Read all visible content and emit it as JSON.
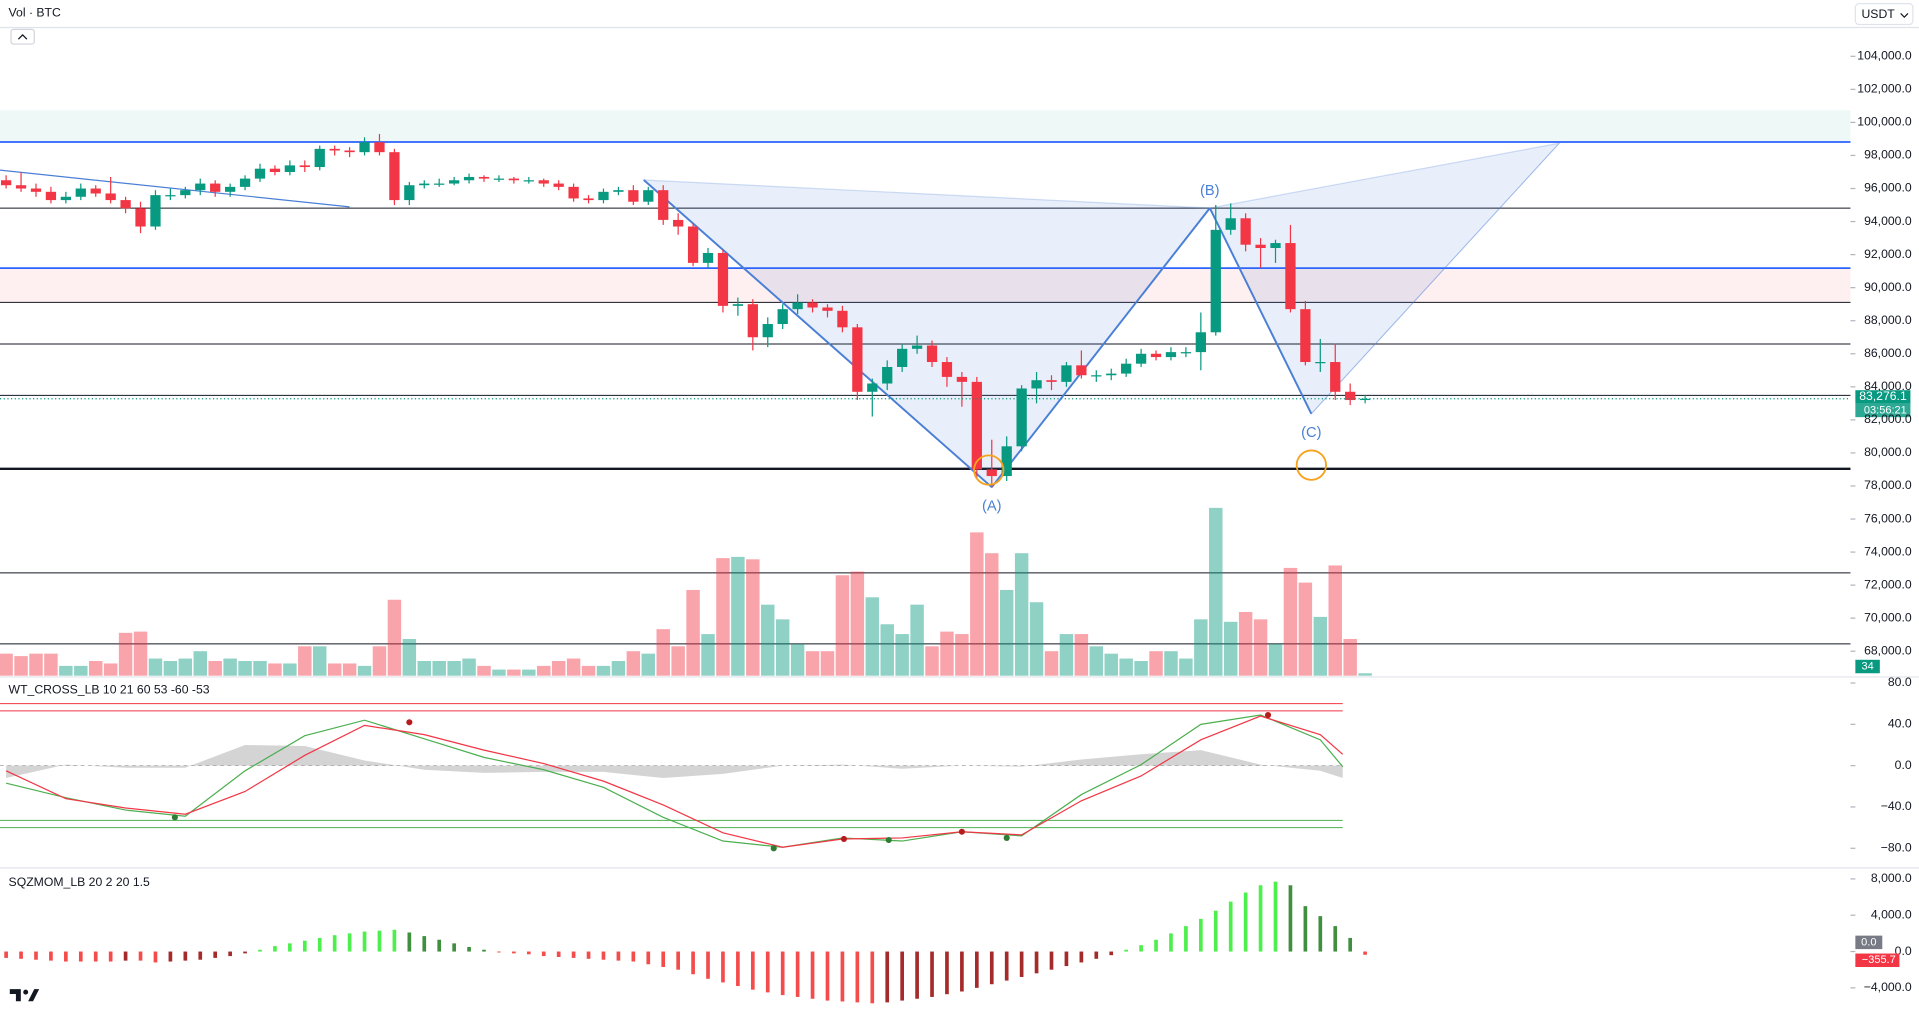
{
  "chart_data": [
    {
      "type": "candlestick",
      "title": "Vol · BTC",
      "currency": "USDT",
      "up_color": "#089981",
      "down_color": "#f23645",
      "x": [
        0,
        1,
        2,
        3,
        4,
        5,
        6,
        7,
        8,
        9,
        10,
        11,
        12,
        13,
        14,
        15,
        16,
        17,
        18,
        19,
        20,
        21,
        22,
        23,
        24,
        25,
        26,
        27,
        28,
        29,
        30,
        31,
        32,
        33,
        34,
        35,
        36,
        37,
        38,
        39,
        40,
        41,
        42,
        43,
        44,
        45,
        46,
        47,
        48,
        49,
        50,
        51,
        52,
        53,
        54,
        55,
        56,
        57,
        58,
        59,
        60,
        61,
        62,
        63,
        64,
        65,
        66,
        67,
        68,
        69,
        70,
        71,
        72,
        73,
        74,
        75,
        76,
        77,
        78,
        79,
        80,
        81,
        82,
        83,
        84,
        85,
        86,
        87,
        88,
        89,
        90,
        91
      ],
      "open": [
        96500,
        96200,
        96000,
        95800,
        95300,
        95500,
        96000,
        95700,
        95300,
        94800,
        93700,
        95600,
        95600,
        95900,
        96300,
        95800,
        96100,
        96600,
        97200,
        97000,
        97400,
        97300,
        98400,
        98300,
        98200,
        98800,
        98200,
        95300,
        96200,
        96300,
        96300,
        96500,
        96700,
        96600,
        96600,
        96500,
        96500,
        96300,
        96100,
        95400,
        95300,
        95800,
        95900,
        95200,
        95900,
        94100,
        93700,
        91500,
        92100,
        88900,
        89000,
        87000,
        87800,
        88700,
        89100,
        88800,
        88600,
        87600,
        83700,
        84200,
        85200,
        86300,
        86500,
        85500,
        84600,
        84300,
        79000,
        78600,
        80400,
        83900,
        84400,
        84300,
        85300,
        84700,
        84700,
        84800,
        85400,
        86000,
        85800,
        86100,
        86100,
        87300,
        93500,
        94200,
        92600,
        92400,
        92700,
        88700,
        85500,
        85500,
        83700,
        83200
      ],
      "high": [
        96800,
        97000,
        96300,
        96100,
        95800,
        96300,
        96200,
        96700,
        95500,
        95200,
        95900,
        96000,
        96100,
        96600,
        96500,
        96300,
        96800,
        97500,
        97400,
        97700,
        97700,
        98600,
        98600,
        98500,
        99100,
        99300,
        98400,
        96400,
        96500,
        96600,
        96700,
        96900,
        96800,
        96800,
        96700,
        96700,
        96600,
        96500,
        96300,
        95600,
        96000,
        96100,
        96200,
        96100,
        96200,
        94500,
        93900,
        92400,
        92300,
        89400,
        89300,
        88200,
        89000,
        89600,
        89300,
        89000,
        88900,
        87800,
        84500,
        85600,
        86600,
        87100,
        86800,
        85800,
        84900,
        84600,
        80800,
        81000,
        84100,
        84900,
        84700,
        85500,
        86200,
        85000,
        85100,
        85700,
        86300,
        86200,
        86400,
        86400,
        88500,
        95000,
        95100,
        94500,
        93000,
        92900,
        93800,
        89200,
        86900,
        86600,
        84200,
        83500
      ],
      "low": [
        96000,
        95800,
        95500,
        95100,
        95100,
        95300,
        95500,
        95100,
        94500,
        93300,
        93500,
        95300,
        95400,
        95600,
        95500,
        95500,
        95900,
        96400,
        96800,
        96800,
        97000,
        97100,
        98000,
        97900,
        98000,
        98000,
        95000,
        95000,
        96000,
        96100,
        96200,
        96300,
        96400,
        96400,
        96300,
        96300,
        96100,
        95900,
        95200,
        95100,
        95100,
        95600,
        95000,
        95000,
        93800,
        93200,
        91300,
        91200,
        88500,
        88300,
        86200,
        86400,
        87500,
        88400,
        88500,
        88200,
        87300,
        83200,
        82200,
        83800,
        84900,
        86000,
        85200,
        84000,
        82800,
        78500,
        77900,
        78300,
        80100,
        83000,
        83800,
        84000,
        84500,
        84300,
        84400,
        84600,
        85200,
        85600,
        85600,
        85800,
        85000,
        87100,
        93200,
        92200,
        91200,
        91500,
        88500,
        85300,
        84900,
        83200,
        82900,
        83000
      ],
      "close": [
        96200,
        96000,
        95800,
        95300,
        95500,
        96000,
        95700,
        95300,
        94800,
        93700,
        95600,
        95600,
        95900,
        96300,
        95800,
        96100,
        96600,
        97200,
        97000,
        97400,
        97300,
        98400,
        98300,
        98200,
        98800,
        98200,
        95300,
        96200,
        96300,
        96300,
        96500,
        96700,
        96600,
        96600,
        96500,
        96500,
        96300,
        96100,
        95400,
        95300,
        95800,
        95900,
        95200,
        95900,
        94100,
        93700,
        91500,
        92100,
        88900,
        89000,
        87000,
        87800,
        88700,
        89100,
        88800,
        88600,
        87600,
        83700,
        84200,
        85200,
        86300,
        86500,
        85500,
        84600,
        84300,
        79000,
        78600,
        80400,
        83900,
        84400,
        84300,
        85300,
        84700,
        84700,
        84800,
        85400,
        86000,
        85800,
        86100,
        86100,
        87300,
        93500,
        94200,
        92600,
        92400,
        92700,
        88700,
        85500,
        85500,
        83700,
        83200,
        83276.1
      ],
      "last_price_label": "83,276.1",
      "countdown": "03:56:21",
      "xlim": [
        -0.41,
        123.5
      ],
      "ylim": [
        66519,
        105778
      ],
      "yticks": [
        {
          "value": 104000,
          "label": "104,000.0"
        },
        {
          "value": 102000,
          "label": "102,000.0"
        },
        {
          "value": 100000,
          "label": "100,000.0"
        },
        {
          "value": 98000,
          "label": "98,000.0"
        },
        {
          "value": 96000,
          "label": "96,000.0"
        },
        {
          "value": 94000,
          "label": "94,000.0"
        },
        {
          "value": 92000,
          "label": "92,000.0"
        },
        {
          "value": 90000,
          "label": "90,000.0"
        },
        {
          "value": 88000,
          "label": "88,000.0"
        },
        {
          "value": 86000,
          "label": "86,000.0"
        },
        {
          "value": 84000,
          "label": "84,000.0"
        },
        {
          "value": 82000,
          "label": "82,000.0"
        },
        {
          "value": 80000,
          "label": "80,000.0"
        },
        {
          "value": 78000,
          "label": "78,000.0"
        },
        {
          "value": 76000,
          "label": "76,000.0"
        },
        {
          "value": 74000,
          "label": "74,000.0"
        },
        {
          "value": 72000,
          "label": "72,000.0"
        },
        {
          "value": 70000,
          "label": "70,000.0"
        },
        {
          "value": 68000,
          "label": "68,000.0"
        }
      ],
      "zones": [
        {
          "from": 98815,
          "to": 100740,
          "color": "#26a69a"
        },
        {
          "from": 89111,
          "to": 91185,
          "color": "#f23645"
        }
      ],
      "levels": [
        {
          "value": 98815,
          "color": "#2962ff"
        },
        {
          "value": 94815,
          "color": "#131722"
        },
        {
          "value": 91185,
          "color": "#2962ff"
        },
        {
          "value": 89111,
          "color": "#131722"
        },
        {
          "value": 86593,
          "color": "#131722"
        },
        {
          "value": 83481,
          "color": "#131722"
        },
        {
          "value": 79037,
          "color": "#131722",
          "bold": true
        },
        {
          "value": 72740,
          "color": "#131722"
        },
        {
          "value": 68444,
          "color": "#131722"
        }
      ],
      "trendline": {
        "color": "#4a7fd6",
        "points": [
          {
            "x": -0.41,
            "value": 97111
          },
          {
            "x": 23,
            "value": 94889
          }
        ]
      },
      "pattern": {
        "color": "#4a7fd6",
        "points": [
          {
            "x": 42.7,
            "value": 96518
          },
          {
            "x": 66,
            "value": 77926,
            "label": "(A)"
          },
          {
            "x": 80.6,
            "value": 94815,
            "label": "(B)"
          },
          {
            "x": 87.4,
            "value": 82370,
            "label": "(C)"
          },
          {
            "x": 104,
            "value": 98741
          }
        ]
      },
      "circles": {
        "color": "#f7a21b",
        "points": [
          {
            "x": 65.8,
            "value": 78963
          },
          {
            "x": 87.4,
            "value": 79259
          }
        ]
      }
    },
    {
      "type": "bar",
      "ylim": [
        0,
        2650
      ],
      "values": [
        306,
        272,
        306,
        306,
        136,
        136,
        204,
        170,
        595,
        612,
        238,
        204,
        238,
        340,
        204,
        238,
        204,
        204,
        170,
        170,
        408,
        408,
        170,
        170,
        136,
        408,
        1054,
        510,
        204,
        204,
        204,
        238,
        136,
        85,
        85,
        85,
        136,
        204,
        238,
        136,
        136,
        204,
        340,
        306,
        646,
        408,
        1190,
        578,
        1632,
        1649,
        1615,
        986,
        782,
        442,
        340,
        340,
        1394,
        1445,
        1088,
        714,
        578,
        986,
        408,
        612,
        578,
        1989,
        1700,
        1190,
        1700,
        1020,
        340,
        578,
        578,
        408,
        306,
        238,
        204,
        340,
        340,
        238,
        782,
        2329,
        748,
        884,
        782,
        442,
        1496,
        1292,
        816,
        1530,
        510,
        34
      ]
    },
    {
      "type": "line",
      "title": "WT_CROSS_LB 10 21 60 53 -60 -53",
      "x": [
        0,
        4,
        8,
        12,
        16,
        20,
        24,
        28,
        32,
        36,
        40,
        44,
        48,
        52,
        56,
        60,
        64,
        68,
        72,
        76,
        80,
        84,
        88,
        89.5
      ],
      "series": [
        {
          "color": "#4caf50",
          "values": [
            -17,
            -31,
            -43,
            -49,
            -5,
            29,
            44,
            26,
            8,
            -4,
            -21,
            -50,
            -73,
            -79,
            -70,
            -73,
            -64,
            -68,
            -28,
            1,
            40,
            49,
            25,
            -1
          ]
        },
        {
          "color": "#f23645",
          "values": [
            -5,
            -32,
            -41,
            -47,
            -25,
            10,
            39,
            30,
            15,
            2,
            -15,
            -38,
            -65,
            -79,
            -71,
            -70,
            -64,
            -67,
            -34,
            -10,
            25,
            48,
            30,
            11
          ]
        }
      ],
      "area": {
        "color": "#b8b8b8",
        "values": [
          -12,
          1,
          -2,
          -2,
          20,
          19,
          5,
          -4,
          -7,
          -6,
          -6,
          -12,
          -8,
          0,
          1,
          -3,
          0,
          -1,
          6,
          11,
          15,
          1,
          -5,
          -12
        ]
      },
      "levels": [
        {
          "value": 60,
          "color": "#f23645"
        },
        {
          "value": 53,
          "color": "#f23645"
        },
        {
          "value": -53,
          "color": "#4caf50"
        },
        {
          "value": -60,
          "color": "#4caf50"
        }
      ],
      "crosses": [
        {
          "x": 11.3,
          "value": -50,
          "color": "#2e7d32"
        },
        {
          "x": 27,
          "value": 42,
          "color": "#b71c1c"
        },
        {
          "x": 51.4,
          "value": -80,
          "color": "#2e7d32"
        },
        {
          "x": 56.1,
          "value": -71,
          "color": "#b71c1c"
        },
        {
          "x": 59.1,
          "value": -72,
          "color": "#2e7d32"
        },
        {
          "x": 64,
          "value": -64,
          "color": "#b71c1c"
        },
        {
          "x": 67,
          "value": -70,
          "color": "#2e7d32"
        },
        {
          "x": 84.5,
          "value": 49,
          "color": "#b71c1c"
        }
      ],
      "ylim": [
        -97.8,
        85.9
      ],
      "yticks": [
        {
          "value": 80,
          "label": "80.0"
        },
        {
          "value": 40,
          "label": "40.0"
        },
        {
          "value": 0,
          "label": "0.0"
        },
        {
          "value": -40,
          "label": "−40.0"
        },
        {
          "value": -80,
          "label": "−80.0"
        }
      ]
    },
    {
      "type": "bar",
      "title": "SQZMOM_LB 20 2 20 1.5",
      "colors": {
        "up_rising": "#4cef4c",
        "up_falling": "#3f8f3f",
        "down_falling": "#f44b4b",
        "down_rising": "#a52a2a"
      },
      "values": [
        -700,
        -800,
        -900,
        -1000,
        -1100,
        -1100,
        -1100,
        -1100,
        -1000,
        -1000,
        -1200,
        -1100,
        -1000,
        -900,
        -700,
        -500,
        -200,
        200,
        600,
        900,
        1200,
        1500,
        1800,
        2000,
        2200,
        2300,
        2400,
        2100,
        1700,
        1300,
        900,
        500,
        200,
        -100,
        -200,
        -300,
        -500,
        -600,
        -700,
        -800,
        -900,
        -1000,
        -1100,
        -1400,
        -1700,
        -2000,
        -2500,
        -3000,
        -3400,
        -3800,
        -4200,
        -4500,
        -4800,
        -5000,
        -5200,
        -5400,
        -5500,
        -5600,
        -5700,
        -5600,
        -5400,
        -5200,
        -5000,
        -4700,
        -4400,
        -4000,
        -3600,
        -3200,
        -2800,
        -2400,
        -2000,
        -1600,
        -1200,
        -800,
        -400,
        200,
        700,
        1300,
        2000,
        2800,
        3600,
        4500,
        5500,
        6500,
        7300,
        7700,
        7300,
        5000,
        3900,
        2800,
        1500,
        -355.7
      ],
      "last_label": "−355.7",
      "signal_label": {
        "value": 0,
        "label": "0.0"
      },
      "ylim": [
        -7100,
        9080
      ],
      "yticks": [
        {
          "value": 8000,
          "label": "8,000.0"
        },
        {
          "value": 4000,
          "label": "4,000.0"
        },
        {
          "value": 0,
          "label": "0.0"
        },
        {
          "value": -4000,
          "label": "−4,000.0"
        }
      ]
    }
  ]
}
